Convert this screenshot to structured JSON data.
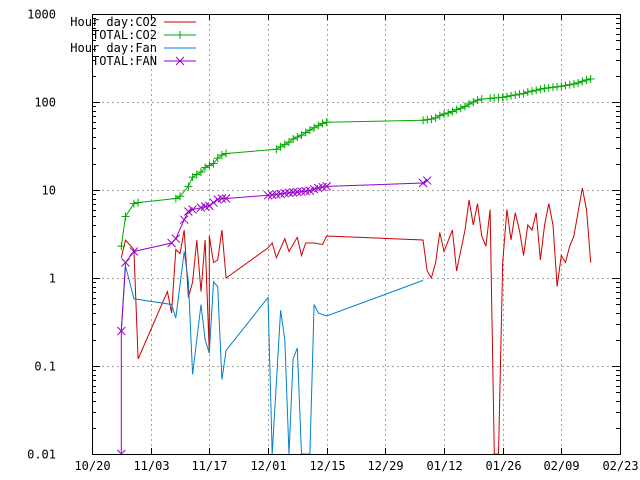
{
  "chart_data": {
    "type": "line",
    "title": "",
    "xlabel": "",
    "ylabel": "",
    "y_scale": "log",
    "ylim": [
      0.01,
      1000
    ],
    "xlim": [
      "2014-10-20",
      "2015-02-23"
    ],
    "grid": true,
    "legend_position": "top-left",
    "x_ticks": [
      {
        "date": "2014-10-20",
        "label": "10/20"
      },
      {
        "date": "2014-11-03",
        "label": "11/03"
      },
      {
        "date": "2014-11-17",
        "label": "11/17"
      },
      {
        "date": "2014-12-01",
        "label": "12/01"
      },
      {
        "date": "2014-12-15",
        "label": "12/15"
      },
      {
        "date": "2014-12-29",
        "label": "12/29"
      },
      {
        "date": "2015-01-12",
        "label": "01/12"
      },
      {
        "date": "2015-01-26",
        "label": "01/26"
      },
      {
        "date": "2015-02-09",
        "label": "02/09"
      },
      {
        "date": "2015-02-23",
        "label": "02/23"
      }
    ],
    "y_ticks": [
      {
        "value": 0.01,
        "label": "0.01"
      },
      {
        "value": 0.1,
        "label": "0.1"
      },
      {
        "value": 1,
        "label": "1"
      },
      {
        "value": 10,
        "label": "10"
      },
      {
        "value": 100,
        "label": "100"
      },
      {
        "value": 1000,
        "label": "1000"
      }
    ],
    "series": [
      {
        "name": "Hour day:CO2",
        "color": "#cc0000",
        "marker": "none",
        "points": [
          [
            "2014-10-27",
            1.7
          ],
          [
            "2014-10-28",
            2.7
          ],
          [
            "2014-10-30",
            2.1
          ],
          [
            "2014-10-31",
            0.12
          ],
          [
            "2014-11-07",
            0.7
          ],
          [
            "2014-11-08",
            0.4
          ],
          [
            "2014-11-09",
            2.1
          ],
          [
            "2014-11-10",
            1.9
          ],
          [
            "2014-11-11",
            3.5
          ],
          [
            "2014-11-12",
            0.6
          ],
          [
            "2014-11-13",
            0.9
          ],
          [
            "2014-11-14",
            2.7
          ],
          [
            "2014-11-15",
            0.7
          ],
          [
            "2014-11-16",
            2.7
          ],
          [
            "2014-11-17",
            0.14
          ],
          [
            "2014-11-17",
            3.0
          ],
          [
            "2014-11-18",
            1.5
          ],
          [
            "2014-11-19",
            1.6
          ],
          [
            "2014-11-20",
            3.5
          ],
          [
            "2014-11-21",
            1.0
          ],
          [
            "2014-12-01",
            2.2
          ],
          [
            "2014-12-02",
            2.5
          ],
          [
            "2014-12-03",
            1.7
          ],
          [
            "2014-12-05",
            2.8
          ],
          [
            "2014-12-06",
            2.0
          ],
          [
            "2014-12-08",
            2.9
          ],
          [
            "2014-12-09",
            1.8
          ],
          [
            "2014-12-10",
            2.5
          ],
          [
            "2014-12-12",
            2.5
          ],
          [
            "2014-12-14",
            2.4
          ],
          [
            "2014-12-15",
            3.0
          ],
          [
            "2015-01-07",
            2.7
          ],
          [
            "2015-01-08",
            1.2
          ],
          [
            "2015-01-09",
            1.0
          ],
          [
            "2015-01-10",
            1.5
          ],
          [
            "2015-01-11",
            3.3
          ],
          [
            "2015-01-12",
            2.0
          ],
          [
            "2015-01-14",
            3.5
          ],
          [
            "2015-01-15",
            1.2
          ],
          [
            "2015-01-17",
            3.5
          ],
          [
            "2015-01-18",
            7.7
          ],
          [
            "2015-01-19",
            4.0
          ],
          [
            "2015-01-20",
            7.0
          ],
          [
            "2015-01-21",
            3.0
          ],
          [
            "2015-01-22",
            2.3
          ],
          [
            "2015-01-23",
            6.0
          ],
          [
            "2015-01-24",
            0.01
          ],
          [
            "2015-01-25",
            0.01
          ],
          [
            "2015-01-26",
            1.5
          ],
          [
            "2015-01-27",
            6.0
          ],
          [
            "2015-01-28",
            2.7
          ],
          [
            "2015-01-29",
            5.5
          ],
          [
            "2015-01-30",
            3.5
          ],
          [
            "2015-01-31",
            1.8
          ],
          [
            "2015-02-01",
            4.0
          ],
          [
            "2015-02-02",
            3.5
          ],
          [
            "2015-02-03",
            5.5
          ],
          [
            "2015-02-04",
            1.6
          ],
          [
            "2015-02-05",
            4.0
          ],
          [
            "2015-02-06",
            7.0
          ],
          [
            "2015-02-07",
            4.0
          ],
          [
            "2015-02-08",
            0.8
          ],
          [
            "2015-02-09",
            1.8
          ],
          [
            "2015-02-10",
            1.5
          ],
          [
            "2015-02-11",
            2.3
          ],
          [
            "2015-02-12",
            3.0
          ],
          [
            "2015-02-14",
            10.5
          ],
          [
            "2015-02-15",
            6.0
          ],
          [
            "2015-02-16",
            1.5
          ]
        ]
      },
      {
        "name": "TOTAL:CO2",
        "color": "#00aa00",
        "marker": "plus",
        "points": [
          [
            "2014-10-27",
            2.3
          ],
          [
            "2014-10-28",
            5.0
          ],
          [
            "2014-10-30",
            7.0
          ],
          [
            "2014-10-31",
            7.2
          ],
          [
            "2014-11-09",
            8.0
          ],
          [
            "2014-11-10",
            8.5
          ],
          [
            "2014-11-12",
            11.0
          ],
          [
            "2014-11-13",
            14.0
          ],
          [
            "2014-11-14",
            15.0
          ],
          [
            "2014-11-15",
            16.0
          ],
          [
            "2014-11-16",
            18.0
          ],
          [
            "2014-11-17",
            19.0
          ],
          [
            "2014-11-18",
            20.0
          ],
          [
            "2014-11-19",
            23.0
          ],
          [
            "2014-11-20",
            25.0
          ],
          [
            "2014-11-21",
            26.0
          ],
          [
            "2014-12-03",
            29.0
          ],
          [
            "2014-12-04",
            31.0
          ],
          [
            "2014-12-05",
            33.0
          ],
          [
            "2014-12-06",
            35.0
          ],
          [
            "2014-12-07",
            38.0
          ],
          [
            "2014-12-08",
            40.0
          ],
          [
            "2014-12-09",
            42.0
          ],
          [
            "2014-12-10",
            45.0
          ],
          [
            "2014-12-11",
            48.0
          ],
          [
            "2014-12-12",
            51.0
          ],
          [
            "2014-12-13",
            54.0
          ],
          [
            "2014-12-14",
            57.0
          ],
          [
            "2014-12-15",
            59.0
          ],
          [
            "2015-01-07",
            62.0
          ],
          [
            "2015-01-08",
            63.0
          ],
          [
            "2015-01-09",
            64.0
          ],
          [
            "2015-01-10",
            66.0
          ],
          [
            "2015-01-11",
            70.0
          ],
          [
            "2015-01-12",
            73.0
          ],
          [
            "2015-01-13",
            75.0
          ],
          [
            "2015-01-14",
            78.0
          ],
          [
            "2015-01-15",
            82.0
          ],
          [
            "2015-01-16",
            85.0
          ],
          [
            "2015-01-17",
            89.0
          ],
          [
            "2015-01-18",
            95.0
          ],
          [
            "2015-01-19",
            100.0
          ],
          [
            "2015-01-20",
            105.0
          ],
          [
            "2015-01-21",
            108.0
          ],
          [
            "2015-01-23",
            110.0
          ],
          [
            "2015-01-24",
            111.0
          ],
          [
            "2015-01-25",
            112.0
          ],
          [
            "2015-01-26",
            113.0
          ],
          [
            "2015-01-27",
            115.0
          ],
          [
            "2015-01-28",
            118.0
          ],
          [
            "2015-01-29",
            120.0
          ],
          [
            "2015-01-30",
            123.0
          ],
          [
            "2015-01-31",
            125.0
          ],
          [
            "2015-02-01",
            130.0
          ],
          [
            "2015-02-02",
            133.0
          ],
          [
            "2015-02-03",
            136.0
          ],
          [
            "2015-02-04",
            140.0
          ],
          [
            "2015-02-05",
            143.0
          ],
          [
            "2015-02-06",
            145.0
          ],
          [
            "2015-02-07",
            147.0
          ],
          [
            "2015-02-08",
            149.0
          ],
          [
            "2015-02-09",
            151.0
          ],
          [
            "2015-02-10",
            154.0
          ],
          [
            "2015-02-11",
            157.0
          ],
          [
            "2015-02-12",
            160.0
          ],
          [
            "2015-02-13",
            165.0
          ],
          [
            "2015-02-14",
            172.0
          ],
          [
            "2015-02-15",
            178.0
          ],
          [
            "2015-02-16",
            183.0
          ]
        ]
      },
      {
        "name": "Hour day:Fan",
        "color": "#0080cc",
        "marker": "none",
        "points": [
          [
            "2014-10-27",
            0.25
          ],
          [
            "2014-10-28",
            1.35
          ],
          [
            "2014-10-29",
            0.9
          ],
          [
            "2014-10-30",
            0.58
          ],
          [
            "2014-11-08",
            0.5
          ],
          [
            "2014-11-09",
            0.35
          ],
          [
            "2014-11-11",
            2.0
          ],
          [
            "2014-11-12",
            0.9
          ],
          [
            "2014-11-13",
            0.08
          ],
          [
            "2014-11-15",
            0.5
          ],
          [
            "2014-11-16",
            0.2
          ],
          [
            "2014-11-17",
            0.14
          ],
          [
            "2014-11-18",
            0.9
          ],
          [
            "2014-11-19",
            0.8
          ],
          [
            "2014-11-20",
            0.07
          ],
          [
            "2014-11-21",
            0.15
          ],
          [
            "2014-12-01",
            0.6
          ],
          [
            "2014-12-02",
            0.01
          ],
          [
            "2014-12-04",
            0.43
          ],
          [
            "2014-12-05",
            0.2
          ],
          [
            "2014-12-06",
            0.01
          ],
          [
            "2014-12-07",
            0.12
          ],
          [
            "2014-12-08",
            0.16
          ],
          [
            "2014-12-09",
            0.01
          ],
          [
            "2014-12-11",
            0.01
          ],
          [
            "2014-12-12",
            0.5
          ],
          [
            "2014-12-13",
            0.4
          ],
          [
            "2014-12-15",
            0.37
          ],
          [
            "2015-01-07",
            0.94
          ]
        ]
      },
      {
        "name": "TOTAL:FAN",
        "color": "#9900cc",
        "marker": "x",
        "points": [
          [
            "2014-10-27",
            0.01
          ],
          [
            "2014-10-27",
            0.25
          ],
          [
            "2014-10-28",
            1.5
          ],
          [
            "2014-10-30",
            2.0
          ],
          [
            "2014-11-08",
            2.5
          ],
          [
            "2014-11-09",
            2.8
          ],
          [
            "2014-11-11",
            4.6
          ],
          [
            "2014-11-12",
            5.7
          ],
          [
            "2014-11-13",
            6.0
          ],
          [
            "2014-11-15",
            6.3
          ],
          [
            "2014-11-16",
            6.5
          ],
          [
            "2014-11-17",
            6.6
          ],
          [
            "2014-11-18",
            7.2
          ],
          [
            "2014-11-19",
            7.8
          ],
          [
            "2014-11-20",
            8.0
          ],
          [
            "2014-11-21",
            8.0
          ],
          [
            "2014-12-01",
            8.7
          ],
          [
            "2014-12-02",
            8.8
          ],
          [
            "2014-12-03",
            8.9
          ],
          [
            "2014-12-04",
            9.0
          ],
          [
            "2014-12-05",
            9.2
          ],
          [
            "2014-12-06",
            9.3
          ],
          [
            "2014-12-07",
            9.4
          ],
          [
            "2014-12-08",
            9.5
          ],
          [
            "2014-12-09",
            9.6
          ],
          [
            "2014-12-10",
            9.7
          ],
          [
            "2014-12-11",
            9.8
          ],
          [
            "2014-12-12",
            10.2
          ],
          [
            "2014-12-13",
            10.5
          ],
          [
            "2014-12-14",
            10.8
          ],
          [
            "2014-12-15",
            11.0
          ],
          [
            "2015-01-07",
            12.0
          ],
          [
            "2015-01-08",
            12.8
          ]
        ]
      }
    ]
  }
}
